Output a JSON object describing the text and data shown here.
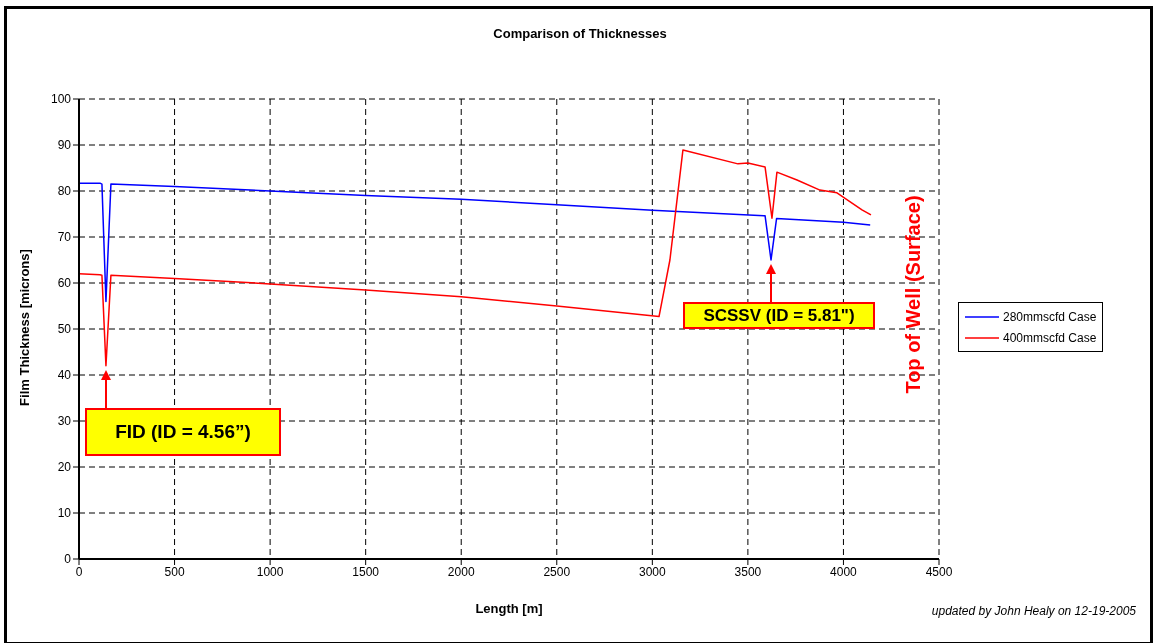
{
  "chart_data": {
    "type": "line",
    "title": "Comparison of Thicknesses",
    "xlabel": "Length [m]",
    "ylabel": "Film Thickness [microns]",
    "xlim": [
      0,
      4500
    ],
    "xticks": [
      0,
      500,
      1000,
      1500,
      2000,
      2500,
      3000,
      3500,
      4000,
      4500
    ],
    "ylim": [
      0,
      100
    ],
    "yticks": [
      0,
      10,
      20,
      30,
      40,
      50,
      60,
      70,
      80,
      90,
      100
    ],
    "grid": true,
    "legend": "right",
    "line_style": "solid",
    "marker": "none",
    "series": [
      {
        "name": "280mmscfd Case",
        "color": "#0000ff",
        "x": [
          0,
          110,
          120,
          141,
          167,
          500,
          1000,
          1500,
          2000,
          2500,
          3000,
          3590,
          3621,
          3650,
          4000,
          4140
        ],
        "values": [
          81.7,
          81.7,
          81.5,
          56,
          81.5,
          81,
          80,
          79,
          78.2,
          77,
          75.8,
          74.6,
          65,
          74,
          73.2,
          72.6
        ]
      },
      {
        "name": "400mmscfd Case",
        "color": "#ff0000",
        "x": [
          0,
          110,
          120,
          141,
          167,
          500,
          1000,
          1500,
          2000,
          2500,
          3035,
          3092,
          3160,
          3448,
          3500,
          3590,
          3626,
          3652,
          3757,
          3877,
          3966,
          4097,
          4144
        ],
        "values": [
          62,
          61.8,
          61.7,
          42,
          61.7,
          61,
          59.8,
          58.5,
          57,
          55,
          52.7,
          65,
          88.9,
          85.9,
          86.1,
          85.2,
          74.1,
          84.1,
          82.4,
          80.2,
          79.6,
          75.9,
          74.8
        ]
      }
    ],
    "annotations": [
      {
        "text": "FID (ID = 4.56”)",
        "x": 141,
        "y": 42
      },
      "SCSSV (ID = 5.81\")",
      "Top of Well (Surface)",
      "updated by John Healy on 12-19-2005"
    ]
  }
}
